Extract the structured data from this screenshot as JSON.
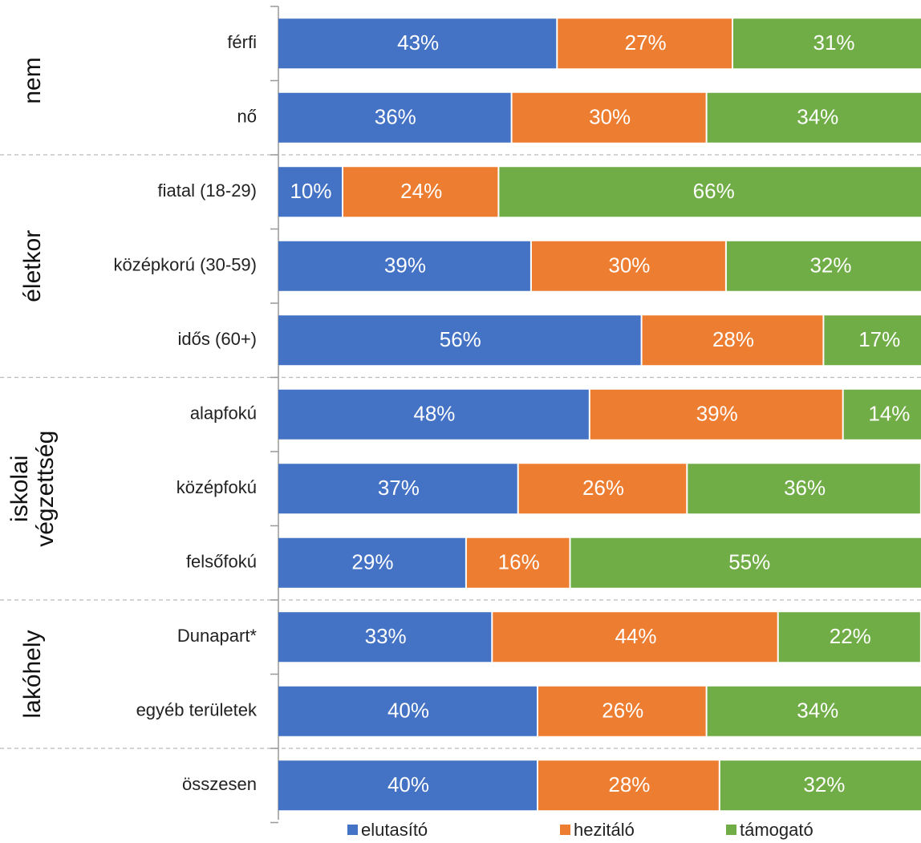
{
  "chart_data": {
    "type": "stacked_bar_horizontal",
    "groups": [
      {
        "label": [
          "nem"
        ],
        "categories": [
          "férfi",
          "nő"
        ]
      },
      {
        "label": [
          "életkor"
        ],
        "categories": [
          "fiatal (18-29)",
          "középkorú (30-59)",
          "idős (60+)"
        ]
      },
      {
        "label": [
          "iskolai",
          "végzettség"
        ],
        "categories": [
          "alapfokú",
          "középfokú",
          "felsőfokú"
        ]
      },
      {
        "label": [
          "lakóhely"
        ],
        "categories": [
          "Dunapart*",
          "egyéb területek"
        ]
      },
      {
        "categories": [
          "összesen"
        ]
      }
    ],
    "series": [
      {
        "name": "elutasító",
        "color": "#4472c4",
        "values": [
          43,
          36,
          10,
          39,
          56,
          48,
          37,
          29,
          33,
          40,
          40
        ],
        "value_labels": [
          "43%",
          "36%",
          "10%",
          "39%",
          "56%",
          "48%",
          "37%",
          "29%",
          "33%",
          "40%",
          "40%"
        ]
      },
      {
        "name": "hezitáló",
        "color": "#ed7d31",
        "values": [
          27,
          30,
          24,
          30,
          28,
          39,
          26,
          16,
          44,
          26,
          28
        ],
        "value_labels": [
          "27%",
          "30%",
          "24%",
          "30%",
          "28%",
          "39%",
          "26%",
          "16%",
          "44%",
          "26%",
          "28%"
        ]
      },
      {
        "name": "támogató",
        "color": "#70ad47",
        "values": [
          31,
          34,
          66,
          32,
          17,
          14,
          36,
          55,
          22,
          34,
          32
        ],
        "value_labels": [
          "31%",
          "34%",
          "66%",
          "32%",
          "17%",
          "14%",
          "36%",
          "55%",
          "22%",
          "34%",
          "32%"
        ]
      }
    ],
    "xlim": [
      0,
      100
    ]
  }
}
